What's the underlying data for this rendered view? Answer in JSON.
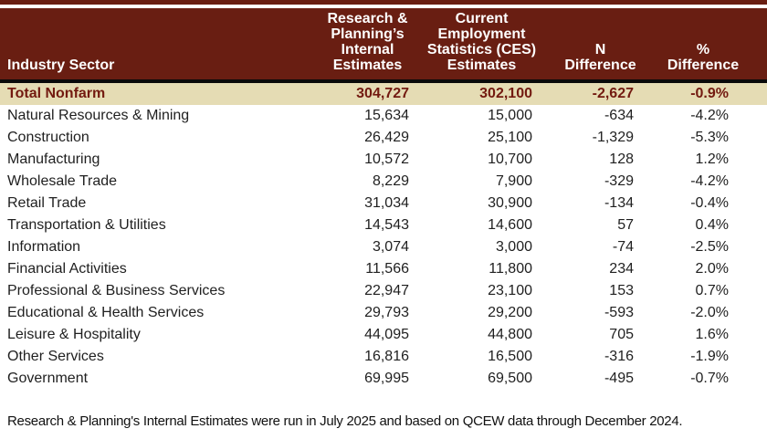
{
  "colors": {
    "page_bg": "#ffffff",
    "header_bg": "#691e12",
    "header_text": "#ffffff",
    "divider": "#0a0a0a",
    "total_bg": "#e5dcb4",
    "total_text": "#731a10",
    "row_text": "#1f1f1f",
    "footnote_text": "#111111"
  },
  "table": {
    "columns": [
      {
        "label": "Industry Sector"
      },
      {
        "label": "Research &\nPlanning’s\nInternal Estimates"
      },
      {
        "label": "Current\nEmployment\nStatistics (CES)\nEstimates"
      },
      {
        "label": "N\nDifference"
      },
      {
        "label": "%\nDifference"
      }
    ],
    "total_row": [
      "Total Nonfarm",
      "304,727",
      "302,100",
      "-2,627",
      "-0.9%"
    ],
    "rows": [
      [
        "Natural Resources & Mining",
        "15,634",
        "15,000",
        "-634",
        "-4.2%"
      ],
      [
        "Construction",
        "26,429",
        "25,100",
        "-1,329",
        "-5.3%"
      ],
      [
        "Manufacturing",
        "10,572",
        "10,700",
        "128",
        "1.2%"
      ],
      [
        "Wholesale Trade",
        "8,229",
        "7,900",
        "-329",
        "-4.2%"
      ],
      [
        "Retail Trade",
        "31,034",
        "30,900",
        "-134",
        "-0.4%"
      ],
      [
        "Transportation & Utilities",
        "14,543",
        "14,600",
        "57",
        "0.4%"
      ],
      [
        "Information",
        "3,074",
        "3,000",
        "-74",
        "-2.5%"
      ],
      [
        "Financial Activities",
        "11,566",
        "11,800",
        "234",
        "2.0%"
      ],
      [
        "Professional & Business Services",
        "22,947",
        "23,100",
        "153",
        "0.7%"
      ],
      [
        "Educational & Health Services",
        "29,793",
        "29,200",
        "-593",
        "-2.0%"
      ],
      [
        "Leisure & Hospitality",
        "44,095",
        "44,800",
        "705",
        "1.6%"
      ],
      [
        "Other Services",
        "16,816",
        "16,500",
        "-316",
        "-1.9%"
      ],
      [
        "Government",
        "69,995",
        "69,500",
        "-495",
        "-0.7%"
      ]
    ]
  },
  "footnote": "Research & Planning's Internal Estimates were run in July 2025 and based on QCEW data through December 2024."
}
